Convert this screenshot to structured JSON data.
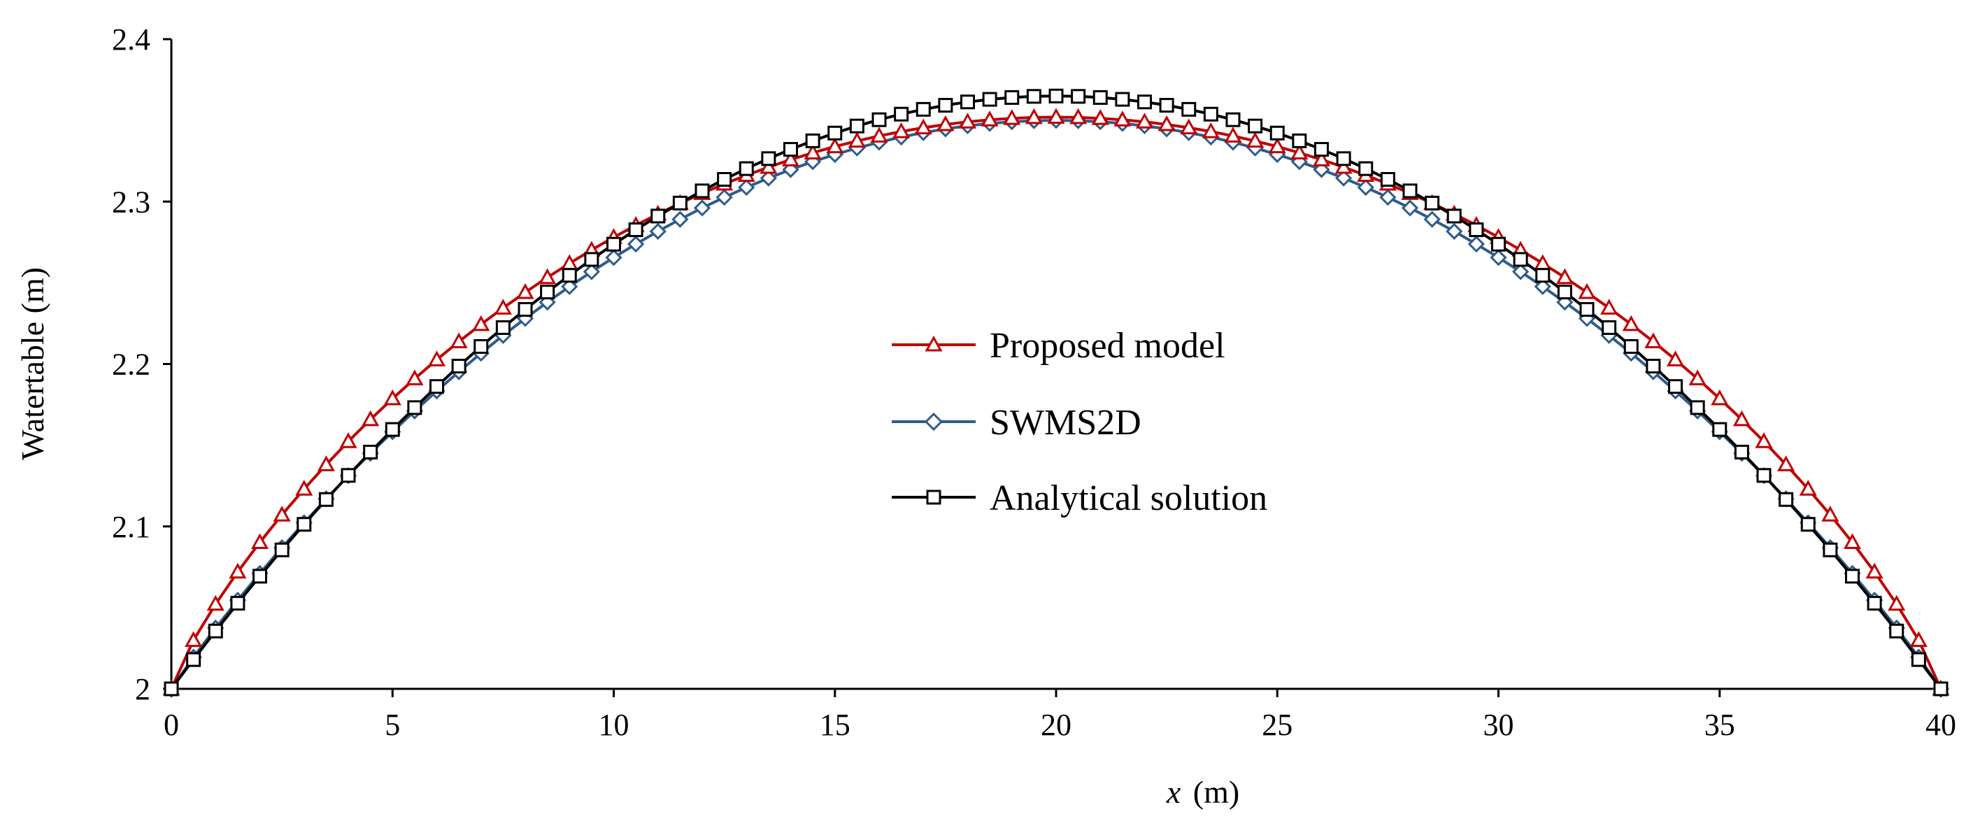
{
  "chart_data": {
    "type": "line",
    "title": "",
    "xlabel_var": "x",
    "xlabel_unit": "(m)",
    "ylabel": "Watertable (m)",
    "xlim": [
      0,
      40
    ],
    "ylim": [
      2.0,
      2.4
    ],
    "xticks": [
      0,
      5,
      10,
      15,
      20,
      25,
      30,
      35,
      40
    ],
    "yticks": [
      2.0,
      2.1,
      2.2,
      2.3,
      2.4
    ],
    "ytick_labels": [
      "2",
      "2.1",
      "2.2",
      "2.3",
      "2.4"
    ],
    "grid": false,
    "legend_position": "center",
    "series": [
      {
        "name": "Proposed model",
        "color": "#c00000",
        "marker": "triangle",
        "x_start": 0,
        "x_end": 40,
        "x_step": 0.5,
        "peak_value": 2.352,
        "shape": "parabola-bulged",
        "bulge": 0.018
      },
      {
        "name": "SWMS2D",
        "color": "#2e5c8a",
        "marker": "diamond",
        "x_start": 0,
        "x_end": 40,
        "x_step": 0.5,
        "peak_value": 2.35,
        "shape": "parabola-bulged",
        "bulge": 0.004
      },
      {
        "name": "Analytical solution",
        "color": "#000000",
        "marker": "square",
        "x_start": 0,
        "x_end": 40,
        "x_step": 0.5,
        "peak_value": 2.365,
        "shape": "parabola",
        "bulge": 0
      }
    ]
  }
}
